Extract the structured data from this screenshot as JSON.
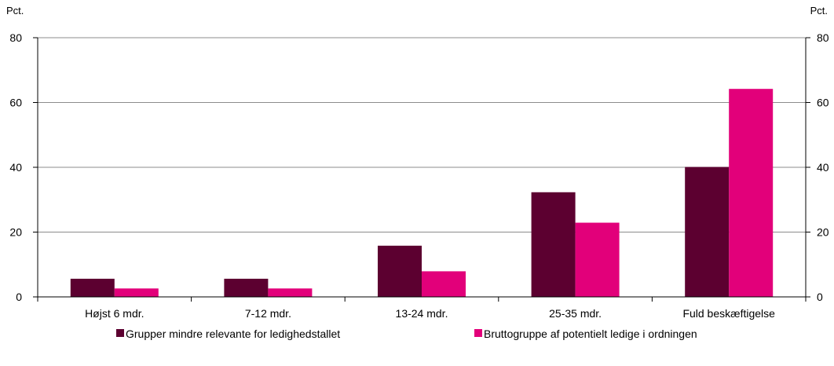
{
  "chart_data": {
    "type": "bar",
    "categories": [
      "Højst 6 mdr.",
      "7-12 mdr.",
      "13-24 mdr.",
      "25-35 mdr.",
      "Fuld beskæftigelse"
    ],
    "series": [
      {
        "name": "Grupper mindre relevante for ledighedstallet",
        "color": "#5c0030",
        "values": [
          5.6,
          5.6,
          15.8,
          32.3,
          40.1
        ]
      },
      {
        "name": "Bruttogruppe af potentielt ledige i ordningen",
        "color": "#e2007a",
        "values": [
          2.6,
          2.6,
          7.9,
          22.9,
          64.2
        ]
      }
    ],
    "y_unit_left": "Pct.",
    "y_unit_right": "Pct.",
    "ylim": [
      0,
      80
    ],
    "yticks": [
      0,
      20,
      40,
      60,
      80
    ],
    "grid": true,
    "dual_axis": true,
    "legend_position": "bottom",
    "title": "",
    "xlabel": "",
    "ylabel": ""
  }
}
